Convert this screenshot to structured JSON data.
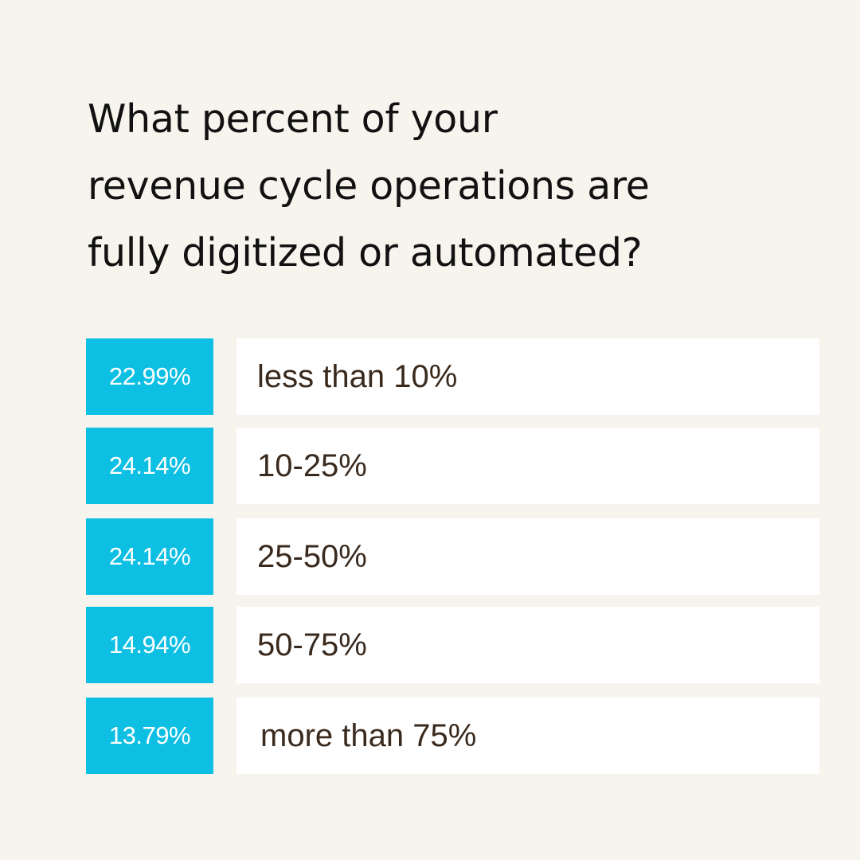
{
  "question": {
    "lines": [
      "What percent of your",
      "revenue cycle operations are",
      "fully digitized or automated?"
    ]
  },
  "colors": {
    "background": "#f7f4ee",
    "accent": "#0cbfe3",
    "answer_box": "#ffffff",
    "answer_text": "#3a2a1e",
    "question_text": "#111111"
  },
  "chart_data": {
    "type": "table",
    "title": "What percent of your revenue cycle operations are fully digitized or automated?",
    "rows": [
      {
        "percent_label": "22.99%",
        "value": 22.99,
        "answer": "less than 10%"
      },
      {
        "percent_label": "24.14%",
        "value": 24.14,
        "answer": "10-25%"
      },
      {
        "percent_label": "24.14%",
        "value": 24.14,
        "answer": "25-50%"
      },
      {
        "percent_label": "14.94%",
        "value": 14.94,
        "answer": "50-75%"
      },
      {
        "percent_label": "13.79%",
        "value": 13.79,
        "answer": "more than 75%"
      }
    ]
  }
}
